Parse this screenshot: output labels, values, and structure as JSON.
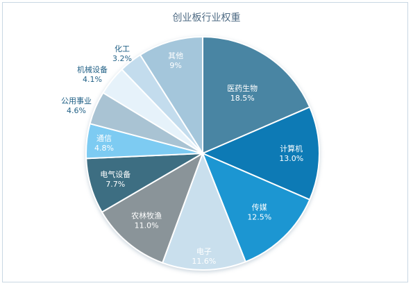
{
  "chart_data": {
    "type": "pie",
    "title": "创业板行业权重",
    "slices": [
      {
        "label": "医药生物",
        "value_text": "18.5%",
        "value": 18.5,
        "color": "#4a85a3"
      },
      {
        "label": "计算机",
        "value_text": "13.0%",
        "value": 13.0,
        "color": "#0d7ab5"
      },
      {
        "label": "传媒",
        "value_text": "12.5%",
        "value": 12.5,
        "color": "#1b96d2"
      },
      {
        "label": "电子",
        "value_text": "11.6%",
        "value": 11.6,
        "color": "#c9dfed"
      },
      {
        "label": "农林牧渔",
        "value_text": "11.0%",
        "value": 11.0,
        "color": "#8a9499"
      },
      {
        "label": "电气设备",
        "value_text": "7.7%",
        "value": 7.7,
        "color": "#3e6e82"
      },
      {
        "label": "通信",
        "value_text": "4.8%",
        "value": 4.8,
        "color": "#7dcbf2"
      },
      {
        "label": "公用事业",
        "value_text": "4.6%",
        "value": 4.6,
        "color": "#a9c3d3"
      },
      {
        "label": "机械设备",
        "value_text": "4.1%",
        "value": 4.1,
        "color": "#e6f2fa"
      },
      {
        "label": "化工",
        "value_text": "3.2%",
        "value": 3.2,
        "color": "#c3dced"
      },
      {
        "label": "其他",
        "value_text": "9%",
        "value": 9.0,
        "color": "#a4c6db"
      }
    ]
  }
}
